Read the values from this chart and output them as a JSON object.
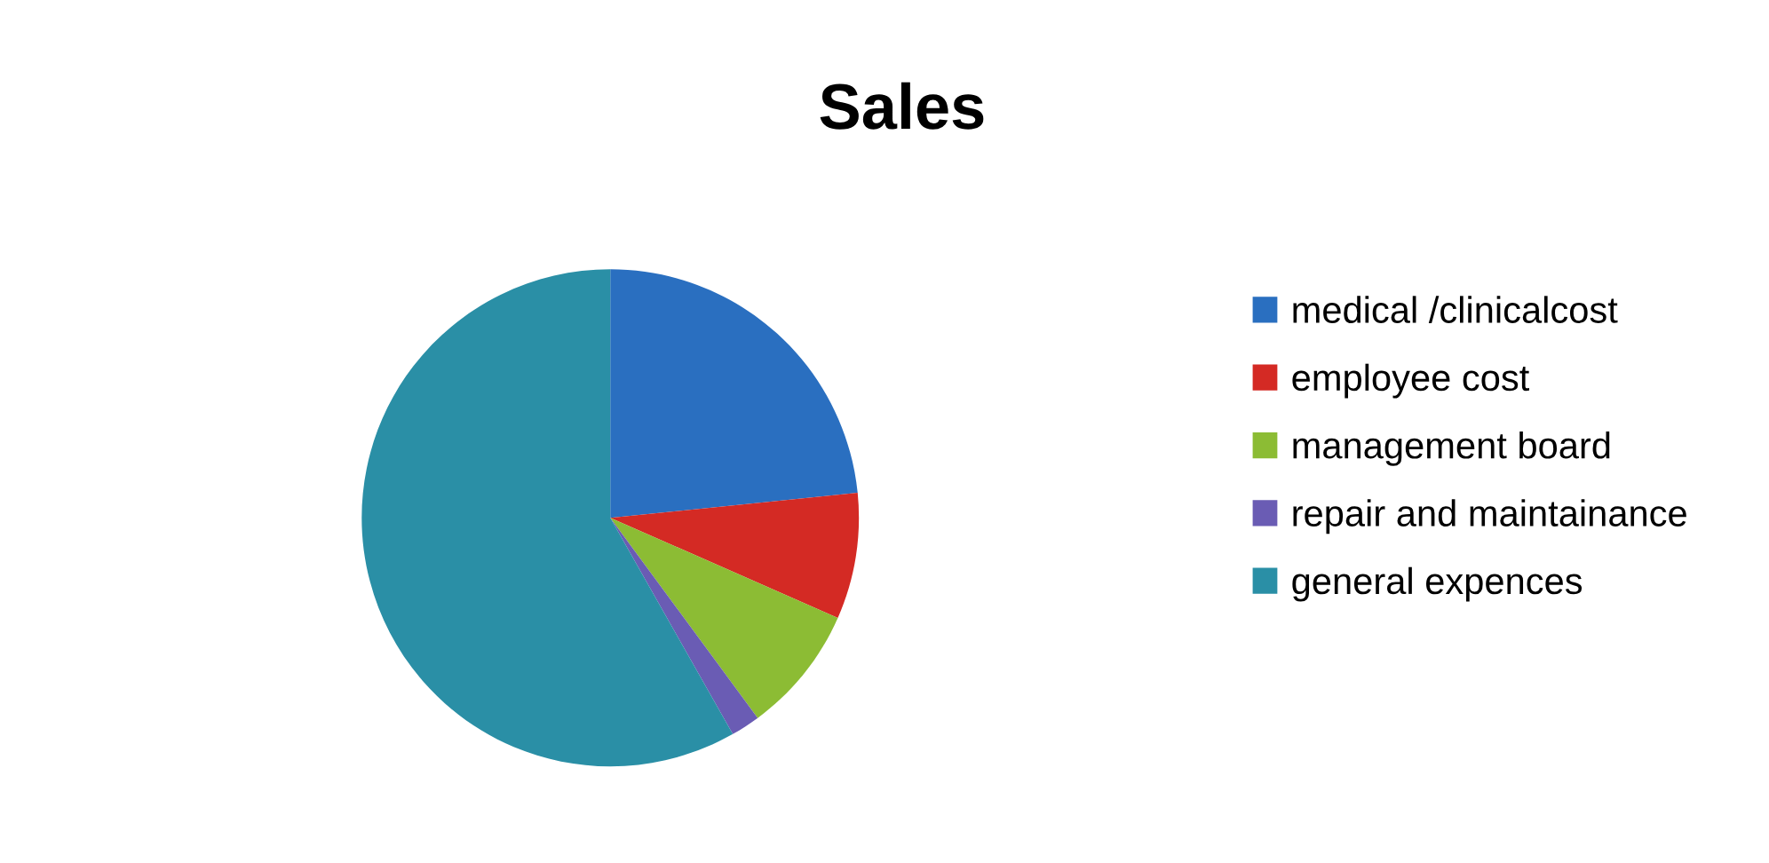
{
  "chart_data": {
    "type": "pie",
    "title": "Sales",
    "categories": [
      "medical /clinicalcost",
      "employee cost",
      "management board",
      "repair and maintainance",
      "general expences"
    ],
    "values": [
      23.4,
      8.2,
      8.3,
      1.9,
      58.2
    ],
    "colors": [
      "#2a6fc0",
      "#d42a24",
      "#8cbc34",
      "#6a5cb4",
      "#2a8fa6"
    ],
    "legend": "right"
  }
}
